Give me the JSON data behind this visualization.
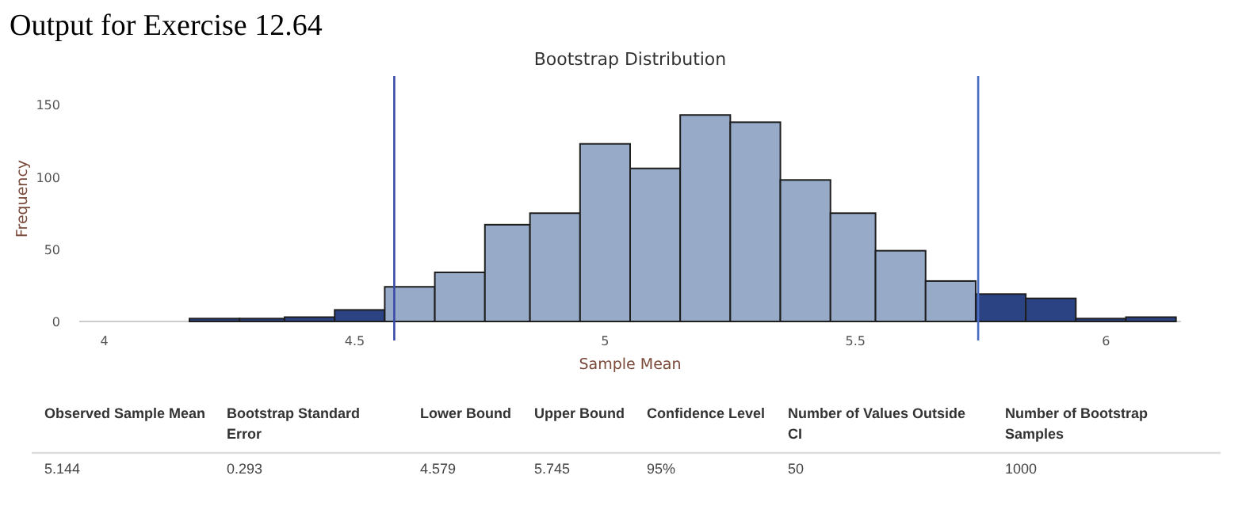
{
  "chart_data": {
    "type": "histogram",
    "title": "Output for Exercise 12.64",
    "subtitle": "Bootstrap Distribution",
    "xlabel": "Sample Mean",
    "ylabel": "Frequency",
    "bins": [
      4.17,
      4.27,
      4.36,
      4.46,
      4.56,
      4.66,
      4.76,
      4.85,
      4.95,
      5.05,
      5.15,
      5.25,
      5.35,
      5.45,
      5.54,
      5.64,
      5.74,
      5.84,
      5.94,
      6.04,
      6.14
    ],
    "values": [
      2,
      2,
      3,
      8,
      24,
      34,
      67,
      75,
      123,
      106,
      143,
      138,
      98,
      75,
      49,
      28,
      19,
      16,
      2,
      3
    ],
    "colors": [
      "#2b4283",
      "#2b4283",
      "#2b4283",
      "#2b4283",
      "#97abc9",
      "#97abc9",
      "#97abc9",
      "#97abc9",
      "#97abc9",
      "#97abc9",
      "#97abc9",
      "#97abc9",
      "#97abc9",
      "#97abc9",
      "#97abc9",
      "#97abc9",
      "#2b4283",
      "#2b4283",
      "#2b4283",
      "#2b4283"
    ],
    "xlim": [
      3.95,
      6.15
    ],
    "xticks": [
      4,
      4.5,
      5,
      5.5,
      6
    ],
    "ylim": [
      0,
      170
    ],
    "yticks": [
      0,
      50,
      100,
      150
    ],
    "grid": false,
    "ref_lines": [
      {
        "axis": "x",
        "value": 4.579,
        "color": "#3a4aa8"
      },
      {
        "axis": "x",
        "value": 5.745,
        "color": "#4a6cc0"
      }
    ],
    "annotations": [
      "Observed Sample Mean",
      "Bootstrap Standard Error",
      "Lower Bound",
      "Upper Bound",
      "Confidence Level",
      "Number of Values Outside CI",
      "Number of Bootstrap Samples",
      "5.144",
      "0.293",
      "4.579",
      "5.745",
      "95%",
      "50",
      "1000"
    ]
  }
}
